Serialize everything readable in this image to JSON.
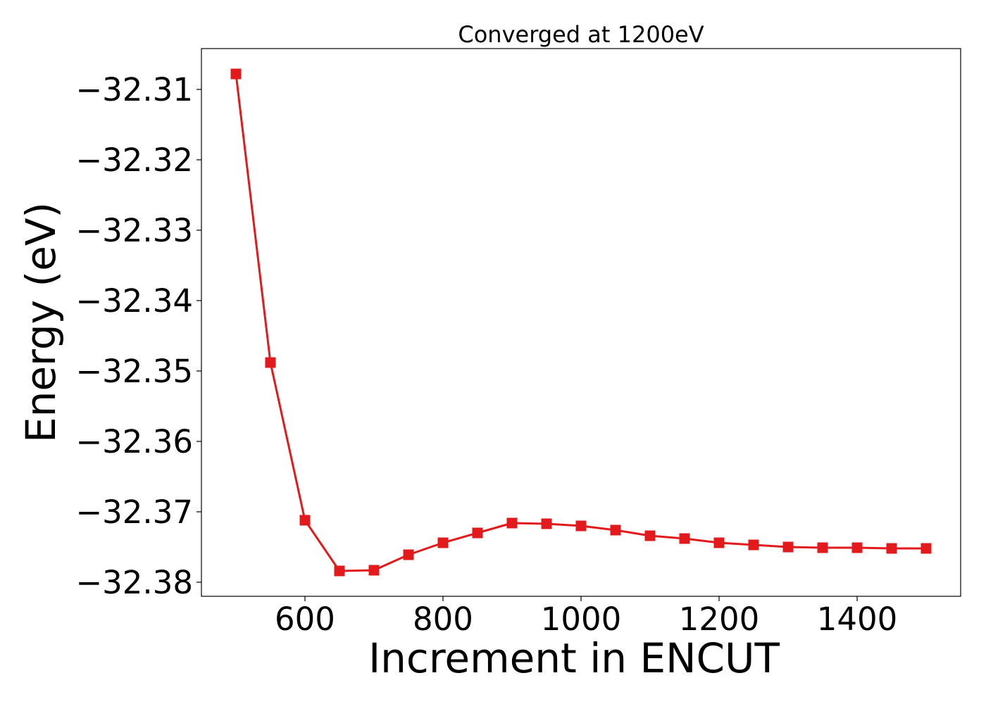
{
  "chart_data": {
    "type": "line",
    "title": "Converged at 1200eV",
    "xlabel": "Increment in ENCUT",
    "ylabel": "Energy (eV)",
    "x": [
      500,
      550,
      600,
      650,
      700,
      750,
      800,
      850,
      900,
      950,
      1000,
      1050,
      1100,
      1150,
      1200,
      1250,
      1300,
      1350,
      1400,
      1450,
      1500
    ],
    "series": [
      {
        "values": [
          -32.3078,
          -32.3488,
          -32.3712,
          -32.3784,
          -32.3783,
          -32.3761,
          -32.3744,
          -32.373,
          -32.3716,
          -32.3717,
          -32.372,
          -32.3726,
          -32.3734,
          -32.3738,
          -32.3744,
          -32.3747,
          -32.375,
          -32.3751,
          -32.3751,
          -32.3752,
          -32.3752
        ],
        "color": "#e31a1c",
        "marker": "square"
      }
    ],
    "xticks": [
      600,
      800,
      1000,
      1200,
      1400
    ],
    "xtick_labels": [
      "600",
      "800",
      "1000",
      "1200",
      "1400"
    ],
    "yticks": [
      -32.31,
      -32.32,
      -32.33,
      -32.34,
      -32.35,
      -32.36,
      -32.37,
      -32.38
    ],
    "ytick_labels": [
      "−32.31",
      "−32.32",
      "−32.33",
      "−32.34",
      "−32.35",
      "−32.36",
      "−32.37",
      "−32.38"
    ],
    "xlim": [
      450,
      1550
    ],
    "ylim": [
      -32.382,
      -32.3042
    ],
    "grid": false,
    "legend": "none"
  }
}
